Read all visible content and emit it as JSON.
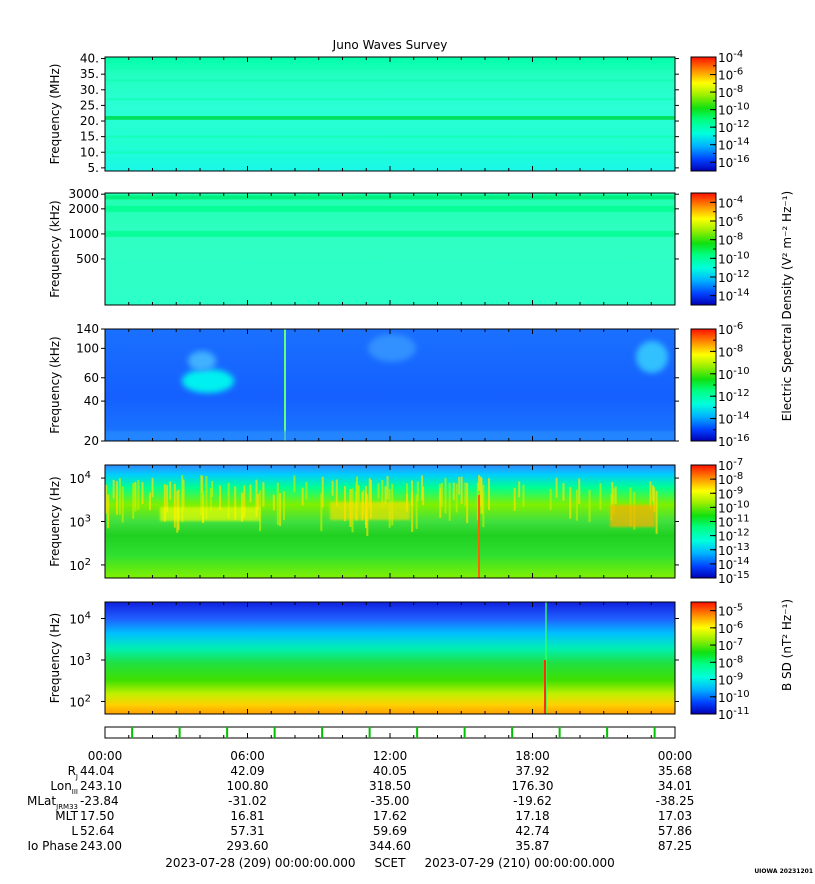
{
  "chart_data": {
    "type": "heatmap",
    "title": "Juno Waves Survey",
    "x_start": "2023-07-28 00:00",
    "x_end": "2023-07-29 00:00",
    "x_tick_labels": [
      "00:00",
      "06:00",
      "12:00",
      "18:00",
      "00:00"
    ],
    "panels": [
      {
        "id": "p1",
        "ylabel": "Frequency (MHz)",
        "yscale": "linear",
        "ylim": [
          4,
          40.5
        ],
        "yticks": [
          {
            "v": 5,
            "t": "5."
          },
          {
            "v": 10,
            "t": "10."
          },
          {
            "v": 15,
            "t": "15."
          },
          {
            "v": 20,
            "t": "20."
          },
          {
            "v": 25,
            "t": "25."
          },
          {
            "v": 30,
            "t": "30."
          },
          {
            "v": 35,
            "t": "35."
          },
          {
            "v": 40,
            "t": "40."
          }
        ],
        "colorbar": {
          "min_exp": -17,
          "max_exp": -4,
          "ticks": [
            {
              "b": "10",
              "e": "-4"
            },
            {
              "b": "10",
              "e": "-6"
            },
            {
              "b": "10",
              "e": "-8"
            },
            {
              "b": "10",
              "e": "-10"
            },
            {
              "b": "10",
              "e": "-12"
            },
            {
              "b": "10",
              "e": "-14"
            },
            {
              "b": "10",
              "e": "-16"
            }
          ]
        }
      },
      {
        "id": "p2",
        "ylabel": "Frequency (kHz)",
        "yscale": "log",
        "ylim": [
          140,
          3100
        ],
        "yticks": [
          {
            "v": 500,
            "t": "500"
          },
          {
            "v": 1000,
            "t": "1000"
          },
          {
            "v": 2000,
            "t": "2000"
          },
          {
            "v": 3000,
            "t": "3000"
          }
        ],
        "colorbar": {
          "min_exp": -15,
          "max_exp": -3,
          "ticks": [
            {
              "b": "10",
              "e": "-4"
            },
            {
              "b": "10",
              "e": "-6"
            },
            {
              "b": "10",
              "e": "-8"
            },
            {
              "b": "10",
              "e": "-10"
            },
            {
              "b": "10",
              "e": "-12"
            },
            {
              "b": "10",
              "e": "-14"
            }
          ]
        }
      },
      {
        "id": "p3",
        "ylabel": "Frequency (kHz)",
        "yscale": "log",
        "ylim": [
          20,
          140
        ],
        "yticks": [
          {
            "v": 20,
            "t": "20"
          },
          {
            "v": 40,
            "t": "40"
          },
          {
            "v": 60,
            "t": "60"
          },
          {
            "v": 100,
            "t": "100"
          },
          {
            "v": 140,
            "t": "140"
          }
        ],
        "colorbar": {
          "min_exp": -16,
          "max_exp": -6,
          "ticks": [
            {
              "b": "10",
              "e": "-6"
            },
            {
              "b": "10",
              "e": "-8"
            },
            {
              "b": "10",
              "e": "-10"
            },
            {
              "b": "10",
              "e": "-12"
            },
            {
              "b": "10",
              "e": "-14"
            },
            {
              "b": "10",
              "e": "-16"
            }
          ]
        }
      },
      {
        "id": "p4",
        "ylabel": "Frequency (Hz)",
        "yscale": "log",
        "ylim": [
          50,
          20000
        ],
        "yticks": [
          {
            "v": 100,
            "b": "10",
            "e": "2"
          },
          {
            "v": 1000,
            "b": "10",
            "e": "3"
          },
          {
            "v": 10000,
            "b": "10",
            "e": "4"
          }
        ],
        "colorbar": {
          "min_exp": -15,
          "max_exp": -7,
          "ticks": [
            {
              "b": "10",
              "e": "-7"
            },
            {
              "b": "10",
              "e": "-8"
            },
            {
              "b": "10",
              "e": "-9"
            },
            {
              "b": "10",
              "e": "-10"
            },
            {
              "b": "10",
              "e": "-11"
            },
            {
              "b": "10",
              "e": "-12"
            },
            {
              "b": "10",
              "e": "-13"
            },
            {
              "b": "10",
              "e": "-14"
            },
            {
              "b": "10",
              "e": "-15"
            }
          ]
        }
      },
      {
        "id": "p5",
        "ylabel": "Frequency (Hz)",
        "yscale": "log",
        "ylim": [
          50,
          25000
        ],
        "yticks": [
          {
            "v": 100,
            "b": "10",
            "e": "2"
          },
          {
            "v": 1000,
            "b": "10",
            "e": "3"
          },
          {
            "v": 10000,
            "b": "10",
            "e": "4"
          }
        ],
        "colorbar": {
          "min_exp": -11,
          "max_exp": -4.5,
          "ticks": [
            {
              "b": "10",
              "e": "-5"
            },
            {
              "b": "10",
              "e": "-6"
            },
            {
              "b": "10",
              "e": "-7"
            },
            {
              "b": "10",
              "e": "-8"
            },
            {
              "b": "10",
              "e": "-9"
            },
            {
              "b": "10",
              "e": "-10"
            },
            {
              "b": "10",
              "e": "-11"
            }
          ]
        }
      }
    ],
    "colorbar_label_e": "Electric Spectral Density (V² m⁻² Hz⁻¹)",
    "colorbar_label_b": "B SD (nT² Hz⁻¹)",
    "ephemeris": {
      "rows": [
        {
          "label": "R",
          "sub": "J",
          "values": [
            "44.04",
            "42.09",
            "40.05",
            "37.92",
            "35.68"
          ]
        },
        {
          "label": "Lon",
          "sub": "III",
          "values": [
            "243.10",
            "100.80",
            "318.50",
            "176.30",
            "34.01"
          ]
        },
        {
          "label": "MLat",
          "sub": "JRM33",
          "values": [
            "-23.84",
            "-31.02",
            "-35.00",
            "-19.62",
            "-38.25"
          ]
        },
        {
          "label": "MLT",
          "sub": "",
          "values": [
            "17.50",
            "16.81",
            "17.62",
            "17.18",
            "17.03"
          ]
        },
        {
          "label": "L",
          "sub": "",
          "values": [
            "52.64",
            "57.31",
            "59.69",
            "42.74",
            "57.86"
          ]
        },
        {
          "label": "Io Phase",
          "sub": "",
          "values": [
            "243.00",
            "293.60",
            "344.60",
            "35.87",
            "87.25"
          ]
        }
      ]
    },
    "footer": "2023-07-28 (209) 00:00:00.000     SCET     2023-07-29 (210) 00:00:00.000",
    "watermark": "UIOWA 20231201"
  }
}
